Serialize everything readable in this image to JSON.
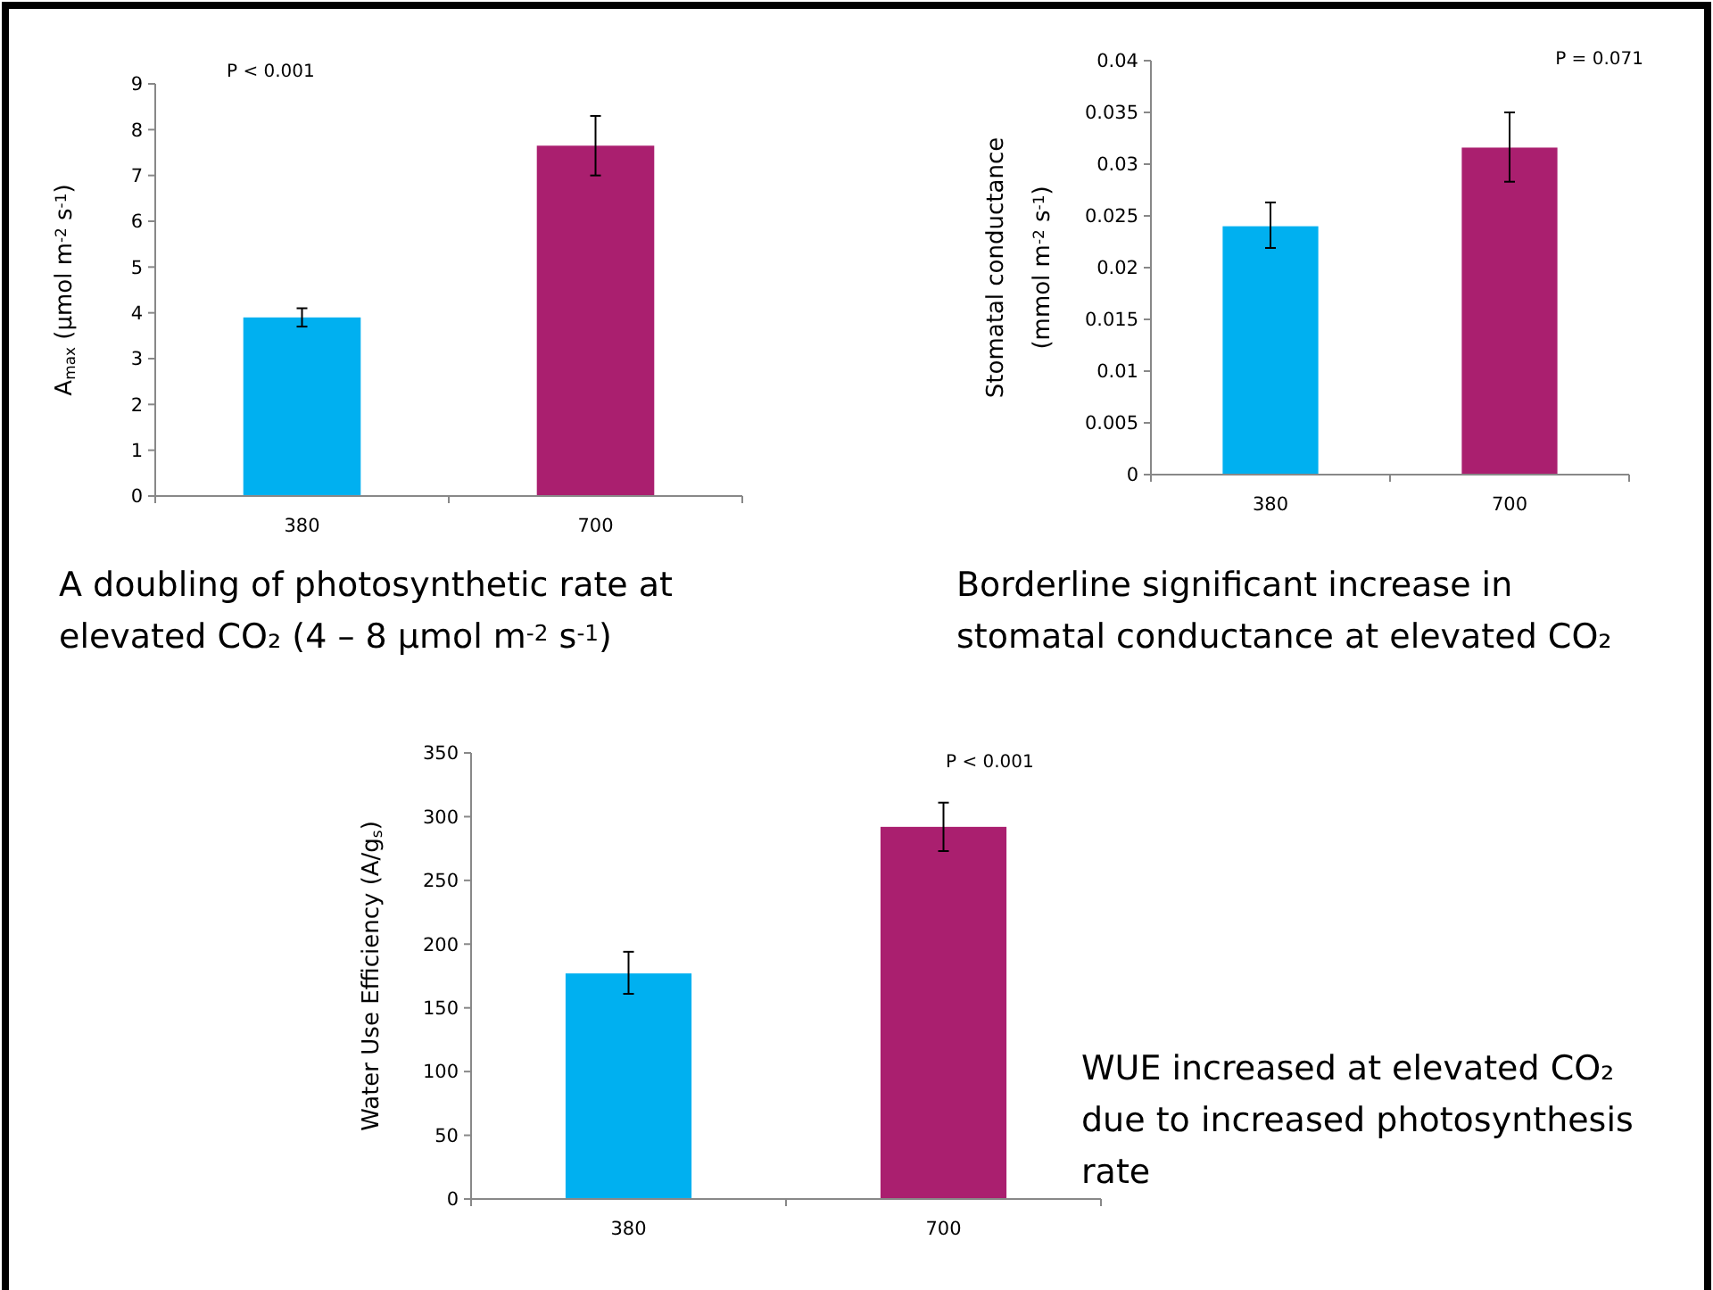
{
  "chart_data": [
    {
      "type": "bar",
      "categories": [
        "380",
        "700"
      ],
      "values": [
        3.9,
        7.65
      ],
      "colors": [
        "#00b0f0",
        "#aa1f6f"
      ],
      "errors": [
        [
          3.7,
          4.1
        ],
        [
          7.0,
          8.3
        ]
      ],
      "ylabel": "A$_{max}$ (µmol m$^{-2}$ s$^{-1}$)",
      "ylim": [
        0,
        9
      ],
      "yticks": [
        0,
        1,
        2,
        3,
        4,
        5,
        6,
        7,
        8,
        9
      ],
      "grid": false,
      "annotations": [
        "P < 0.001",
        "A doubling of photosynthetic rate at elevated CO₂ (4 – 8 µmol m$^{-2}$ s$^{-1}$)"
      ]
    },
    {
      "type": "bar",
      "categories": [
        "380",
        "700"
      ],
      "values": [
        0.024,
        0.0316
      ],
      "colors": [
        "#00b0f0",
        "#aa1f6f"
      ],
      "errors": [
        [
          0.0219,
          0.0263
        ],
        [
          0.0283,
          0.035
        ]
      ],
      "ylabel": "Stomatal conductance\n(mmol m$^{-2}$ s$^{-1}$)",
      "ylim": [
        0,
        0.04
      ],
      "yticks": [
        0,
        0.005,
        0.01,
        0.015,
        0.02,
        0.025,
        0.03,
        0.035,
        0.04
      ],
      "grid": false,
      "annotations": [
        "P = 0.071",
        "Borderline significant increase in stomatal conductance at elevated CO₂"
      ]
    },
    {
      "type": "bar",
      "categories": [
        "380",
        "700"
      ],
      "values": [
        177,
        292
      ],
      "colors": [
        "#00b0f0",
        "#aa1f6f"
      ],
      "errors": [
        [
          161,
          194
        ],
        [
          273,
          311
        ]
      ],
      "ylabel": "Water Use Efficiency (A/g$_{s}$)",
      "ylim": [
        0,
        350
      ],
      "yticks": [
        0,
        50,
        100,
        150,
        200,
        250,
        300,
        350
      ],
      "grid": false,
      "annotations": [
        "P < 0.001",
        "WUE increased at elevated CO₂ due to increased photosynthesis rate"
      ]
    }
  ]
}
